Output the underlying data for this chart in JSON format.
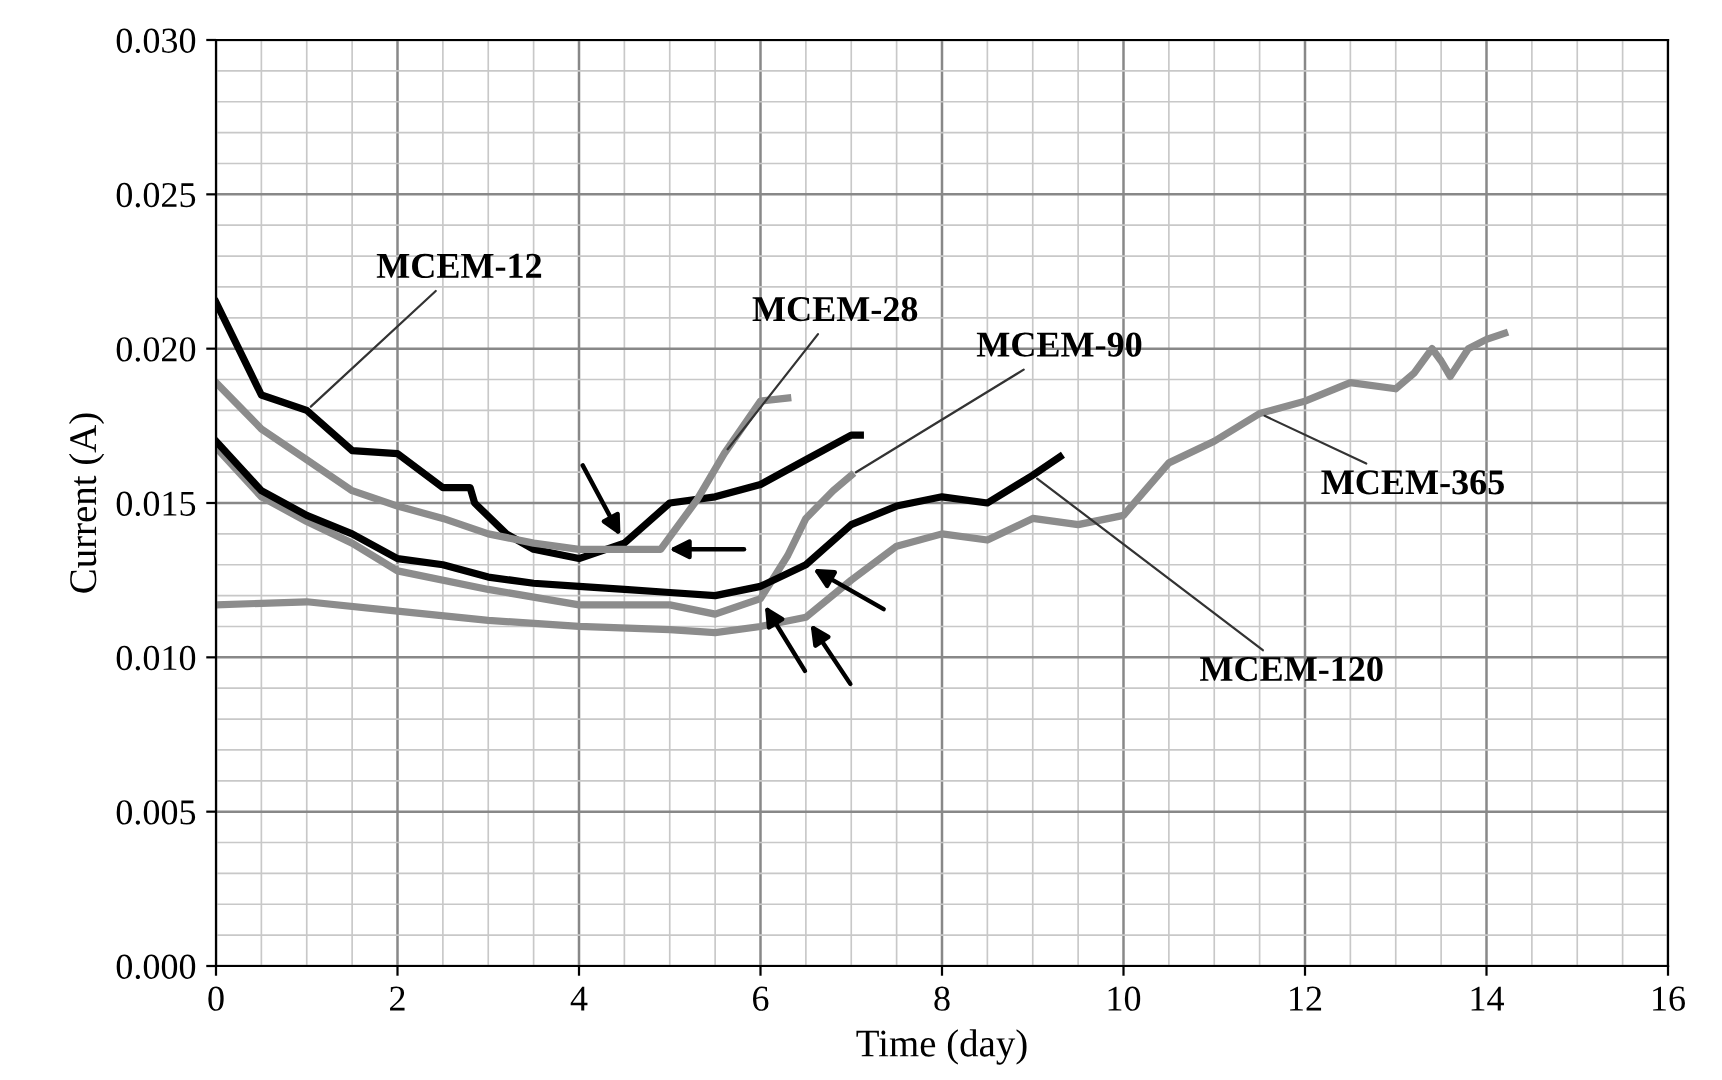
{
  "chart_data": {
    "type": "line",
    "xlabel": "Time (day)",
    "ylabel": "Current (A)",
    "xlim": [
      0,
      16
    ],
    "ylim": [
      0,
      0.03
    ],
    "xticks": [
      0,
      2,
      4,
      6,
      8,
      10,
      12,
      14,
      16
    ],
    "yticks": [
      {
        "value": 0,
        "label": "0.000"
      },
      {
        "value": 0.005,
        "label": "0.005"
      },
      {
        "value": 0.01,
        "label": "0.010"
      },
      {
        "value": 0.015,
        "label": "0.015"
      },
      {
        "value": 0.02,
        "label": "0.020"
      },
      {
        "value": 0.025,
        "label": "0.025"
      },
      {
        "value": 0.03,
        "label": "0.030"
      }
    ],
    "grid": true,
    "legend": false,
    "marker": "none",
    "line_style": "solid",
    "series": [
      {
        "name": "MCEM-12",
        "color": "#000000",
        "x": [
          0,
          0.5,
          1,
          1.5,
          2,
          2.5,
          2.8,
          2.85,
          3.2,
          3.5,
          4,
          4.5,
          5,
          5.5,
          6,
          6.5,
          7,
          7.1
        ],
        "values": [
          0.0215,
          0.0185,
          0.018,
          0.0167,
          0.0166,
          0.0155,
          0.0155,
          0.015,
          0.014,
          0.0135,
          0.0132,
          0.0137,
          0.015,
          0.0152,
          0.0156,
          0.0164,
          0.0172,
          0.0172
        ]
      },
      {
        "name": "MCEM-28",
        "color": "#8c8c8c",
        "x": [
          0,
          0.5,
          1,
          1.5,
          2,
          2.5,
          3,
          3.5,
          4,
          4.5,
          4.9,
          5.3,
          5.6,
          6,
          6.3
        ],
        "values": [
          0.0189,
          0.0174,
          0.0164,
          0.0154,
          0.0149,
          0.0145,
          0.014,
          0.0137,
          0.0135,
          0.0135,
          0.0135,
          0.0151,
          0.0166,
          0.0183,
          0.0184
        ]
      },
      {
        "name": "MCEM-90",
        "color": "#8c8c8c",
        "x": [
          0,
          0.5,
          1,
          1.5,
          2,
          3,
          4,
          5,
          5.5,
          6,
          6.3,
          6.5,
          6.8,
          7
        ],
        "values": [
          0.0168,
          0.0152,
          0.0144,
          0.0137,
          0.0128,
          0.0122,
          0.0117,
          0.0117,
          0.0114,
          0.0119,
          0.0133,
          0.0145,
          0.0154,
          0.0159
        ]
      },
      {
        "name": "MCEM-120",
        "color": "#000000",
        "x": [
          0,
          0.5,
          1,
          1.5,
          2,
          2.5,
          3,
          3.5,
          4,
          4.5,
          5,
          5.5,
          6,
          6.5,
          7,
          7.5,
          8,
          8.5,
          9,
          9.3
        ],
        "values": [
          0.017,
          0.0154,
          0.0146,
          0.014,
          0.0132,
          0.013,
          0.0126,
          0.0124,
          0.0123,
          0.0122,
          0.0121,
          0.012,
          0.0123,
          0.013,
          0.0143,
          0.0149,
          0.0152,
          0.015,
          0.0159,
          0.0165
        ]
      },
      {
        "name": "MCEM-365",
        "color": "#8c8c8c",
        "x": [
          0,
          1,
          2,
          3,
          4,
          5,
          5.5,
          6,
          6.5,
          7,
          7.5,
          8,
          8.5,
          9,
          9.5,
          10,
          10.5,
          11,
          11.5,
          12,
          12.5,
          13,
          13.2,
          13.4,
          13.5,
          13.6,
          13.8,
          14,
          14.2
        ],
        "values": [
          0.0117,
          0.0118,
          0.0115,
          0.0112,
          0.011,
          0.0109,
          0.0108,
          0.011,
          0.0113,
          0.0125,
          0.0136,
          0.014,
          0.0138,
          0.0145,
          0.0143,
          0.0146,
          0.0163,
          0.017,
          0.0179,
          0.0183,
          0.0189,
          0.0187,
          0.0192,
          0.02,
          0.0196,
          0.0191,
          0.02,
          0.0203,
          0.0205
        ]
      }
    ]
  }
}
